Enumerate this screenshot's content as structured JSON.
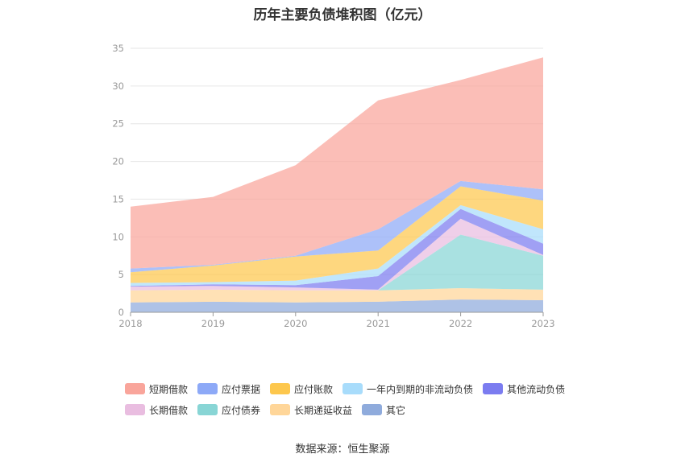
{
  "chart_data": {
    "type": "area",
    "stacked": true,
    "title": "历年主要负债堆积图（亿元）",
    "categories": [
      "2018",
      "2019",
      "2020",
      "2021",
      "2022",
      "2023"
    ],
    "ylim": [
      0,
      35
    ],
    "yticks": [
      0,
      5,
      10,
      15,
      20,
      25,
      30,
      35
    ],
    "grid": true,
    "legend_position": "bottom",
    "series": [
      {
        "name": "其它",
        "color": "#8fabdc",
        "values": [
          1.3,
          1.4,
          1.3,
          1.4,
          1.7,
          1.6
        ]
      },
      {
        "name": "长期递延收益",
        "color": "#ffd699",
        "values": [
          1.6,
          1.6,
          1.6,
          1.5,
          1.5,
          1.4
        ]
      },
      {
        "name": "应付债券",
        "color": "#88d5d5",
        "values": [
          0,
          0,
          0,
          0,
          7.1,
          4.5
        ]
      },
      {
        "name": "长期借款",
        "color": "#e9bde0",
        "values": [
          0.5,
          0.5,
          0.4,
          0.1,
          2.1,
          0.1
        ]
      },
      {
        "name": "其他流动负债",
        "color": "#7b7cf0",
        "values": [
          0.1,
          0.2,
          0.3,
          1.8,
          1.3,
          1.5
        ]
      },
      {
        "name": "一年内到期的非流动负债",
        "color": "#a8dcfb",
        "values": [
          0.4,
          0.3,
          0.6,
          1.0,
          0.5,
          1.9
        ]
      },
      {
        "name": "应付账款",
        "color": "#fdc74d",
        "values": [
          1.4,
          2.2,
          3.2,
          2.4,
          2.5,
          3.8
        ]
      },
      {
        "name": "应付票据",
        "color": "#8da9f7",
        "values": [
          0.5,
          0.1,
          0.1,
          2.8,
          0.7,
          1.5
        ]
      },
      {
        "name": "短期借款",
        "color": "#f9a59b",
        "values": [
          8.2,
          9.0,
          12.0,
          17.1,
          13.4,
          17.5
        ]
      }
    ]
  },
  "legend": {
    "row1": [
      {
        "name": "短期借款",
        "color": "#f9a59b"
      },
      {
        "name": "应付票据",
        "color": "#8da9f7"
      },
      {
        "name": "应付账款",
        "color": "#fdc74d"
      },
      {
        "name": "一年内到期的非流动负债",
        "color": "#a8dcfb"
      },
      {
        "name": "其他流动负债",
        "color": "#7b7cf0"
      }
    ],
    "row2": [
      {
        "name": "长期借款",
        "color": "#e9bde0"
      },
      {
        "name": "应付债券",
        "color": "#88d5d5"
      },
      {
        "name": "长期递延收益",
        "color": "#ffd699"
      },
      {
        "name": "其它",
        "color": "#8fabdc"
      }
    ]
  },
  "source": "数据来源：恒生聚源"
}
